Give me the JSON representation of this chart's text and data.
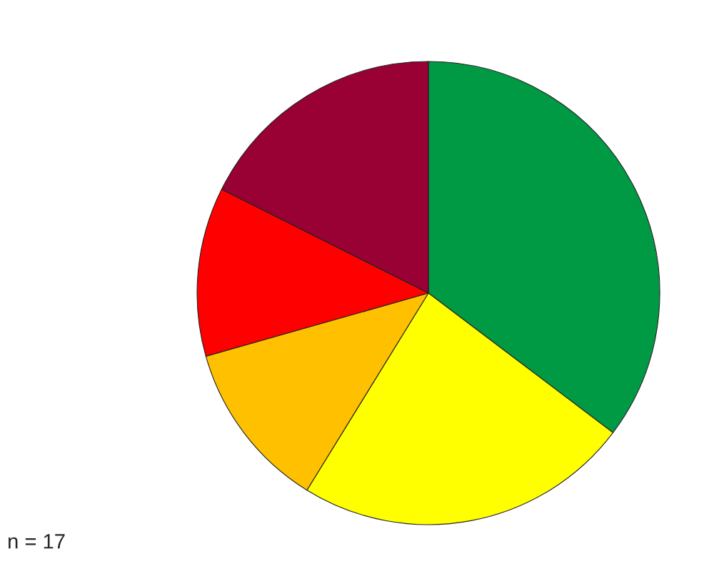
{
  "chart_data": {
    "type": "pie",
    "categories": [
      null,
      null,
      null,
      null,
      null
    ],
    "values": [
      35.3,
      23.5,
      11.8,
      11.8,
      17.6
    ],
    "colors": [
      "#009944",
      "#ffff00",
      "#ffc000",
      "#ff0000",
      "#990033"
    ],
    "annotations": [
      "n = 17"
    ]
  }
}
